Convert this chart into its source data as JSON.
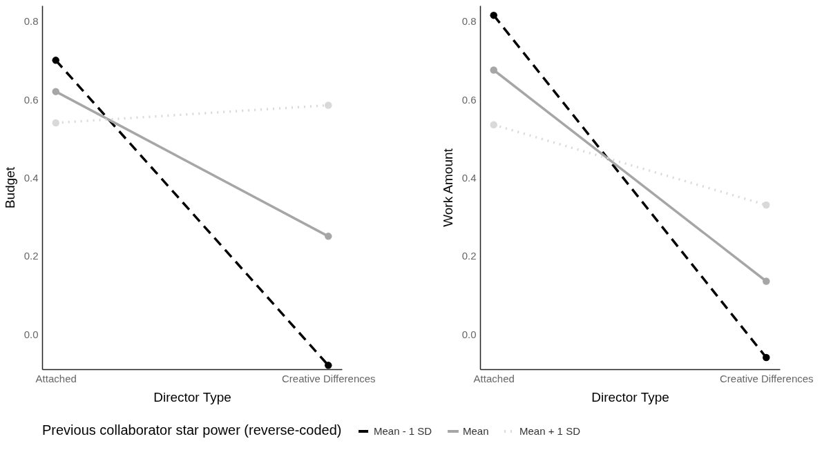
{
  "chart_data": [
    {
      "type": "line",
      "xlabel": "Director Type",
      "ylabel": "Budget",
      "legend_title": "Previous collaborator star power (reverse-coded)",
      "legend": "bottom",
      "marker": "circle",
      "grid": false,
      "categories": [
        "Attached",
        "Creative Differences"
      ],
      "ylim": [
        -0.09,
        0.84
      ],
      "yticks": [
        {
          "value": 0,
          "label": "0.0"
        },
        0.2,
        0.4,
        0.6,
        0.8
      ],
      "series": [
        {
          "name": "Mean - 1 SD",
          "color": "#000000",
          "line_style": "dashed",
          "values": [
            0.7,
            -0.08
          ]
        },
        {
          "name": "Mean",
          "color": "#a6a6a6",
          "line_style": "solid",
          "values": [
            0.62,
            0.25
          ]
        },
        {
          "name": "Mean + 1 SD",
          "color": "#d9d9d9",
          "line_style": "dotted",
          "values": [
            0.54,
            0.585
          ]
        }
      ]
    },
    {
      "type": "line",
      "xlabel": "Director Type",
      "ylabel": "Work Amount",
      "marker": "circle",
      "grid": false,
      "categories": [
        "Attached",
        "Creative Differences"
      ],
      "ylim": [
        -0.09,
        0.84
      ],
      "yticks": [
        {
          "value": 0,
          "label": "0.0"
        },
        0.2,
        0.4,
        0.6,
        0.8
      ],
      "series": [
        {
          "name": "Mean - 1 SD",
          "color": "#000000",
          "line_style": "dashed",
          "values": [
            0.815,
            -0.06
          ]
        },
        {
          "name": "Mean",
          "color": "#a6a6a6",
          "line_style": "solid",
          "values": [
            0.675,
            0.135
          ]
        },
        {
          "name": "Mean + 1 SD",
          "color": "#d9d9d9",
          "line_style": "dotted",
          "values": [
            0.535,
            0.33
          ]
        }
      ]
    }
  ]
}
